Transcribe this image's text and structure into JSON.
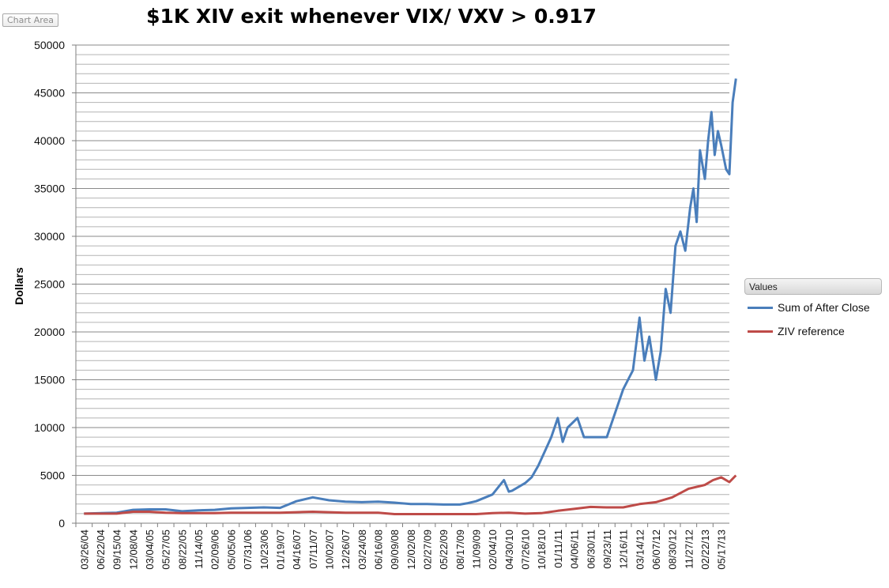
{
  "chart_area_badge": "Chart Area",
  "colors": {
    "series1": "#4a7ebb",
    "series2": "#be4b48",
    "grid": "#9a9a9a",
    "axis": "#7f7f7f"
  },
  "chart_data": {
    "type": "line",
    "title": "$1K XIV  exit whenever VIX/ VXV > 0.917",
    "ylabel": "Dollars",
    "xlabel": "",
    "ylim": [
      0,
      50000
    ],
    "y_ticks": [
      0,
      5000,
      10000,
      15000,
      20000,
      25000,
      30000,
      35000,
      40000,
      45000,
      50000
    ],
    "grid": true,
    "legend_title": "Values",
    "legend_position": "right",
    "x_tick_labels": [
      "03/26/04",
      "06/22/04",
      "09/15/04",
      "12/08/04",
      "03/04/05",
      "05/27/05",
      "08/22/05",
      "11/14/05",
      "02/09/06",
      "05/05/06",
      "07/31/06",
      "10/23/06",
      "01/19/07",
      "04/16/07",
      "07/11/07",
      "10/02/07",
      "12/26/07",
      "03/24/08",
      "06/16/08",
      "09/09/08",
      "12/02/08",
      "02/27/09",
      "05/22/09",
      "08/17/09",
      "11/09/09",
      "02/04/10",
      "04/30/10",
      "07/26/10",
      "10/18/10",
      "01/11/11",
      "04/06/11",
      "06/30/11",
      "09/23/11",
      "12/16/11",
      "03/14/12",
      "06/07/12",
      "08/30/12",
      "11/27/12",
      "02/22/13",
      "05/17/13"
    ],
    "series": [
      {
        "name": "Sum of After Close",
        "x": [
          0,
          2,
          3,
          4,
          5,
          6,
          7,
          8,
          9,
          10,
          11,
          12,
          13,
          14,
          15,
          16,
          17,
          18,
          19,
          20,
          21,
          22,
          22.5,
          23,
          23.5,
          24,
          25,
          25.7,
          26,
          26.2,
          27,
          27.4,
          27.8,
          28.2,
          28.6,
          29,
          29.3,
          29.6,
          29.9,
          30.2,
          30.6,
          31,
          31.2,
          32,
          33,
          33.3,
          33.6,
          34,
          34.3,
          34.6,
          35,
          35.3,
          35.6,
          35.9,
          36.2,
          36.5,
          36.8,
          37.1,
          37.3,
          37.5,
          37.7,
          38,
          38.2,
          38.4,
          38.6,
          38.8,
          39,
          39.3,
          39.5,
          39.7,
          39.9
        ],
        "y": [
          1000,
          1100,
          1400,
          1450,
          1450,
          1250,
          1350,
          1400,
          1550,
          1600,
          1650,
          1600,
          2300,
          2700,
          2400,
          2250,
          2200,
          2250,
          2150,
          2000,
          2000,
          1950,
          1950,
          1950,
          2100,
          2300,
          3000,
          4500,
          3300,
          3400,
          4200,
          4800,
          6000,
          7500,
          9000,
          11000,
          8500,
          10000,
          10500,
          11000,
          9000,
          9000,
          9000,
          9000,
          14000,
          15000,
          16000,
          21500,
          17000,
          19500,
          15000,
          18000,
          24500,
          22000,
          29000,
          30500,
          28500,
          33000,
          35000,
          31500,
          39000,
          36000,
          40000,
          43000,
          38500,
          41000,
          39500,
          37000,
          36500,
          44000,
          46500
        ]
      },
      {
        "name": "ZIV reference",
        "x": [
          0,
          2,
          3,
          4,
          5,
          6,
          7,
          8,
          9,
          10,
          11,
          12,
          13,
          14,
          15,
          16,
          17,
          18,
          19,
          20,
          21,
          22,
          23,
          24,
          25,
          26,
          27,
          28,
          29,
          30,
          31,
          32,
          33,
          34,
          35,
          36,
          37,
          38,
          38.5,
          39,
          39.5,
          39.9
        ],
        "y": [
          1000,
          1000,
          1200,
          1200,
          1100,
          1050,
          1050,
          1050,
          1100,
          1100,
          1100,
          1100,
          1150,
          1200,
          1150,
          1100,
          1100,
          1100,
          950,
          950,
          950,
          950,
          950,
          950,
          1050,
          1100,
          1000,
          1050,
          1300,
          1500,
          1700,
          1650,
          1650,
          2000,
          2200,
          2700,
          3600,
          4000,
          4500,
          4800,
          4300,
          5000
        ]
      }
    ]
  }
}
